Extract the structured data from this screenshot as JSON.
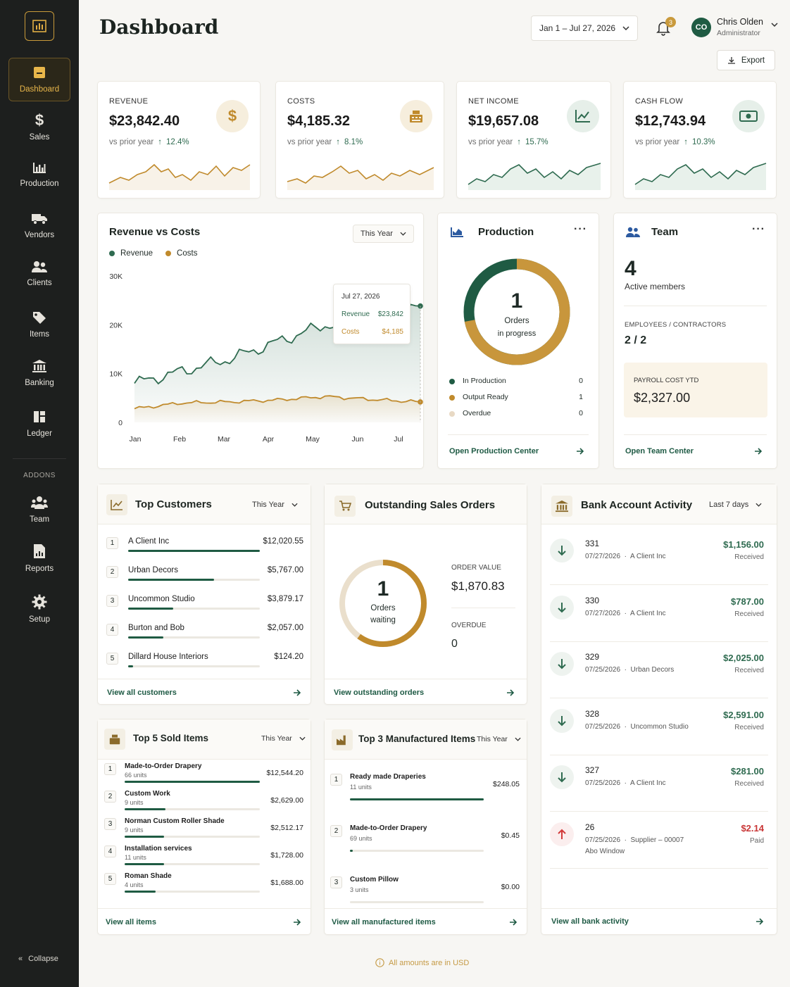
{
  "page": {
    "title": "Dashboard",
    "date_range": "Jan 1 – Jul 27, 2026",
    "notifications": "3",
    "export_label": "Export",
    "currency_note": "All amounts are in USD"
  },
  "user": {
    "initials": "CO",
    "name": "Chris Olden",
    "role": "Administrator"
  },
  "sidebar": {
    "items": [
      {
        "label": "Dashboard",
        "icon": "dashboard-icon"
      },
      {
        "label": "Sales",
        "icon": "dollar-icon"
      },
      {
        "label": "Production",
        "icon": "bar-chart-icon"
      },
      {
        "label": "Vendors",
        "icon": "truck-icon"
      },
      {
        "label": "Clients",
        "icon": "users-icon"
      },
      {
        "label": "Items",
        "icon": "tag-icon"
      },
      {
        "label": "Banking",
        "icon": "bank-icon"
      },
      {
        "label": "Ledger",
        "icon": "book-icon"
      }
    ],
    "addons_label": "ADDONS",
    "addons": [
      {
        "label": "Team",
        "icon": "team-icon"
      },
      {
        "label": "Reports",
        "icon": "report-icon"
      },
      {
        "label": "Setup",
        "icon": "gear-icon"
      }
    ],
    "collapse_label": "Collapse"
  },
  "kpis": [
    {
      "label": "REVENUE",
      "value": "$23,842.40",
      "sub": "vs prior year",
      "pct": "12.4%",
      "icon": "dollar-icon",
      "accent": "#c08a2c"
    },
    {
      "label": "COSTS",
      "value": "$4,185.32",
      "sub": "vs prior year",
      "pct": "8.1%",
      "icon": "cash-register-icon",
      "accent": "#c08a2c"
    },
    {
      "label": "NET INCOME",
      "value": "$19,657.08",
      "sub": "vs prior year",
      "pct": "15.7%",
      "icon": "trend-icon",
      "accent": "#2f6b50"
    },
    {
      "label": "CASH FLOW",
      "value": "$12,743.94",
      "sub": "vs prior year",
      "pct": "10.3%",
      "icon": "money-icon",
      "accent": "#2f6b50"
    }
  ],
  "rev_costs": {
    "title": "Revenue vs Costs",
    "period": "This Year",
    "legend": [
      "Revenue",
      "Costs"
    ],
    "tooltip": {
      "date": "Jul 27, 2026",
      "rev_label": "Revenue",
      "rev_value": "$23,842",
      "cost_label": "Costs",
      "cost_value": "$4,185"
    }
  },
  "chart_data": {
    "type": "area",
    "title": "Revenue vs Costs",
    "categories": [
      "Jan",
      "Feb",
      "Mar",
      "Apr",
      "May",
      "Jun",
      "Jul"
    ],
    "y_ticks": [
      "0",
      "10K",
      "20K",
      "30K"
    ],
    "ylim": [
      0,
      30000
    ],
    "legend_position": "top-left",
    "grid": false,
    "series": [
      {
        "name": "Revenue",
        "color": "#2f6b50",
        "values": [
          8000,
          10500,
          13000,
          16500,
          20000,
          19500,
          23842
        ]
      },
      {
        "name": "Costs",
        "color": "#c08a2c",
        "values": [
          2800,
          4000,
          4200,
          4600,
          5300,
          4700,
          4185
        ]
      }
    ]
  },
  "production": {
    "title": "Production",
    "count": "1",
    "count_label1": "Orders",
    "count_label2": "in progress",
    "rows": [
      {
        "label": "In Production",
        "value": "0",
        "color": "#1f5b43"
      },
      {
        "label": "Output Ready",
        "value": "1",
        "color": "#c08a2c"
      },
      {
        "label": "Overdue",
        "value": "0",
        "color": "#e8d9c4"
      }
    ],
    "ring_fraction": 0.72,
    "link": "Open Production Center"
  },
  "team": {
    "title": "Team",
    "count": "4",
    "count_label": "Active members",
    "emp_label": "EMPLOYEES / CONTRACTORS",
    "emp_value": "2 / 2",
    "payroll_label": "PAYROLL COST YTD",
    "payroll_value": "$2,327.00",
    "link": "Open Team Center"
  },
  "top_customers": {
    "title": "Top Customers",
    "period": "This Year",
    "rows": [
      {
        "rank": "1",
        "name": "A Client Inc",
        "value": "$12,020.55",
        "fill": 1.0
      },
      {
        "rank": "2",
        "name": "Urban Decors",
        "value": "$5,767.00",
        "fill": 0.65
      },
      {
        "rank": "3",
        "name": "Uncommon Studio",
        "value": "$3,879.17",
        "fill": 0.34
      },
      {
        "rank": "4",
        "name": "Burton and Bob",
        "value": "$2,057.00",
        "fill": 0.27
      },
      {
        "rank": "5",
        "name": "Dillard House Interiors",
        "value": "$124.20",
        "fill": 0.04
      }
    ],
    "link": "View all customers"
  },
  "sales_orders": {
    "title": "Outstanding Sales Orders",
    "count": "1",
    "count_label1": "Orders",
    "count_label2": "waiting",
    "ring_fraction": 0.6,
    "value_label": "ORDER VALUE",
    "value": "$1,870.83",
    "overdue_label": "OVERDUE",
    "overdue": "0",
    "link": "View outstanding orders"
  },
  "bank": {
    "title": "Bank Account Activity",
    "period": "Last 7 days",
    "rows": [
      {
        "num": "331",
        "date": "07/27/2026",
        "party": "A Client Inc",
        "extra": "",
        "amount": "$1,156.00",
        "status": "Received",
        "dir": "in"
      },
      {
        "num": "330",
        "date": "07/27/2026",
        "party": "A Client Inc",
        "extra": "",
        "amount": "$787.00",
        "status": "Received",
        "dir": "in"
      },
      {
        "num": "329",
        "date": "07/25/2026",
        "party": "Urban Decors",
        "extra": "",
        "amount": "$2,025.00",
        "status": "Received",
        "dir": "in"
      },
      {
        "num": "328",
        "date": "07/25/2026",
        "party": "Uncommon Studio",
        "extra": "",
        "amount": "$2,591.00",
        "status": "Received",
        "dir": "in"
      },
      {
        "num": "327",
        "date": "07/25/2026",
        "party": "A Client Inc",
        "extra": "",
        "amount": "$281.00",
        "status": "Received",
        "dir": "in"
      },
      {
        "num": "26",
        "date": "07/25/2026",
        "party": "Supplier – 00007",
        "extra": "Abo Window",
        "amount": "$2.14",
        "status": "Paid",
        "dir": "out"
      }
    ],
    "link": "View all bank activity"
  },
  "top_items": {
    "title": "Top 5 Sold Items",
    "period": "This Year",
    "rows": [
      {
        "rank": "1",
        "name": "Made-to-Order Drapery",
        "units": "66 units",
        "value": "$12,544.20",
        "fill": 1.0
      },
      {
        "rank": "2",
        "name": "Custom Work",
        "units": "9 units",
        "value": "$2,629.00",
        "fill": 0.3
      },
      {
        "rank": "3",
        "name": "Norman Custom Roller Shade",
        "units": "9 units",
        "value": "$2,512.17",
        "fill": 0.29
      },
      {
        "rank": "4",
        "name": "Installation services",
        "units": "11 units",
        "value": "$1,728.00",
        "fill": 0.29
      },
      {
        "rank": "5",
        "name": "Roman Shade",
        "units": "4 units",
        "value": "$1,688.00",
        "fill": 0.23
      }
    ],
    "link": "View all items"
  },
  "manufactured": {
    "title": "Top 3 Manufactured Items",
    "period": "This Year",
    "rows": [
      {
        "rank": "1",
        "name": "Ready made Draperies",
        "units": "11 units",
        "value": "$248.05",
        "fill": 1.0
      },
      {
        "rank": "2",
        "name": "Made-to-Order Drapery",
        "units": "69 units",
        "value": "$0.45",
        "fill": 0.02
      },
      {
        "rank": "3",
        "name": "Custom Pillow",
        "units": "3 units",
        "value": "$0.00",
        "fill": 0.0
      }
    ],
    "link": "View all manufactured items"
  }
}
